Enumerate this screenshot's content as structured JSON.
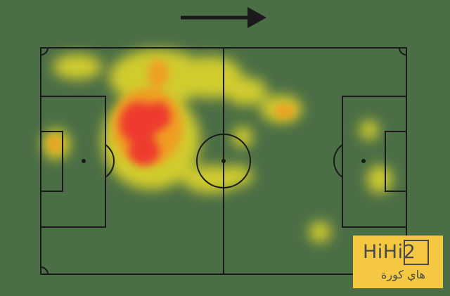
{
  "colors": {
    "background": "#4b6e46",
    "lines": "#1a1a1a",
    "heat_high": "#ee3a2e",
    "heat_mid": "#f39a22",
    "heat_low": "#e8dd2a",
    "logo_bg": "#f5c842"
  },
  "direction": "attacking-right",
  "logo": {
    "main": "HiHi2",
    "arabic": "هاي كورة"
  }
}
